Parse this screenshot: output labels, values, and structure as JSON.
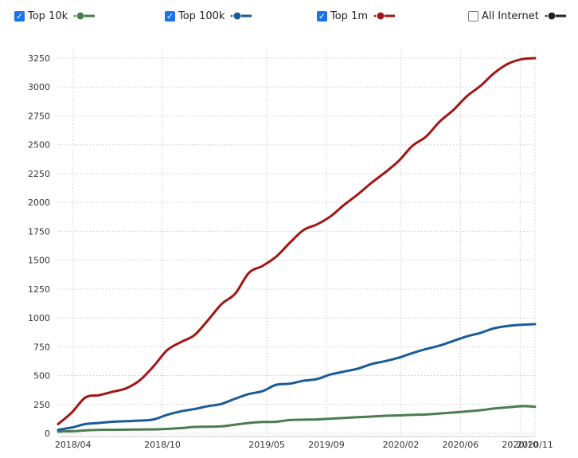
{
  "legend": {
    "items": [
      {
        "label": "Top 10k",
        "checked": true,
        "color": "#4a7c50"
      },
      {
        "label": "Top 100k",
        "checked": true,
        "color": "#1a5a96"
      },
      {
        "label": "Top 1m",
        "checked": true,
        "color": "#a31515"
      },
      {
        "label": "All Internet",
        "checked": false,
        "color": "#222222"
      }
    ]
  },
  "chart_data": {
    "type": "line",
    "grid": true,
    "legend_placement": "top",
    "ylim": [
      0,
      3250
    ],
    "y_ticks": [
      "0",
      "250",
      "500",
      "750",
      "1000",
      "1250",
      "1500",
      "1750",
      "2000",
      "2250",
      "2500",
      "2750",
      "3000",
      "3250"
    ],
    "x_tick_labels": [
      "2018/04",
      "2018/10",
      "2019/05",
      "2019/09",
      "2020/02",
      "2020/06",
      "2020/10",
      "2020/11"
    ],
    "x_tick_positions": [
      1,
      7,
      14,
      18,
      23,
      27,
      31,
      32
    ],
    "x_range": [
      0,
      32
    ],
    "series": [
      {
        "name": "Top 10k",
        "color": "#4a7c50",
        "values": [
          15,
          18,
          25,
          30,
          30,
          32,
          33,
          34,
          38,
          45,
          55,
          57,
          60,
          75,
          90,
          98,
          100,
          115,
          118,
          120,
          127,
          133,
          140,
          145,
          152,
          155,
          160,
          163,
          172,
          180,
          190,
          200,
          215,
          225,
          235,
          230
        ]
      },
      {
        "name": "Top 100k",
        "color": "#1a5a96",
        "values": [
          30,
          50,
          80,
          90,
          100,
          105,
          110,
          120,
          160,
          190,
          210,
          235,
          255,
          300,
          340,
          365,
          420,
          430,
          455,
          470,
          510,
          535,
          560,
          600,
          625,
          655,
          695,
          730,
          760,
          800,
          840,
          870,
          910,
          930,
          940,
          945
        ]
      },
      {
        "name": "Top 1m",
        "color": "#a31515",
        "values": [
          80,
          180,
          310,
          330,
          360,
          390,
          460,
          580,
          720,
          790,
          850,
          980,
          1120,
          1210,
          1390,
          1450,
          1530,
          1650,
          1760,
          1810,
          1880,
          1980,
          2070,
          2170,
          2260,
          2360,
          2490,
          2570,
          2700,
          2800,
          2920,
          3010,
          3120,
          3200,
          3240,
          3250
        ]
      }
    ]
  }
}
